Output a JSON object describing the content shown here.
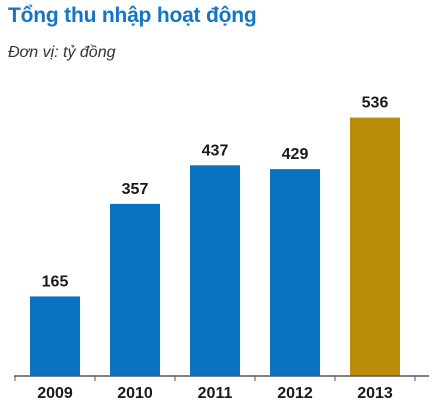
{
  "header": {
    "title": "Tổng thu nhập hoạt động",
    "subtitle": "Đơn vị: tỷ đồng"
  },
  "chart_data": {
    "type": "bar",
    "title": "Tổng thu nhập hoạt động",
    "subtitle": "Đơn vị: tỷ đồng",
    "xlabel": "",
    "ylabel": "",
    "categories": [
      "2009",
      "2010",
      "2011",
      "2012",
      "2013"
    ],
    "values": [
      165,
      357,
      437,
      429,
      536
    ],
    "value_labels": [
      "165",
      "357",
      "437",
      "429",
      "536"
    ],
    "ylim": [
      0,
      560
    ],
    "grid": false,
    "legend": "none",
    "colors": {
      "default_bar": "#0a72c2",
      "highlight_bar": "#bb8c0a",
      "highlight_category": "2013",
      "axis": "#555555",
      "title": "#1276c6"
    }
  }
}
